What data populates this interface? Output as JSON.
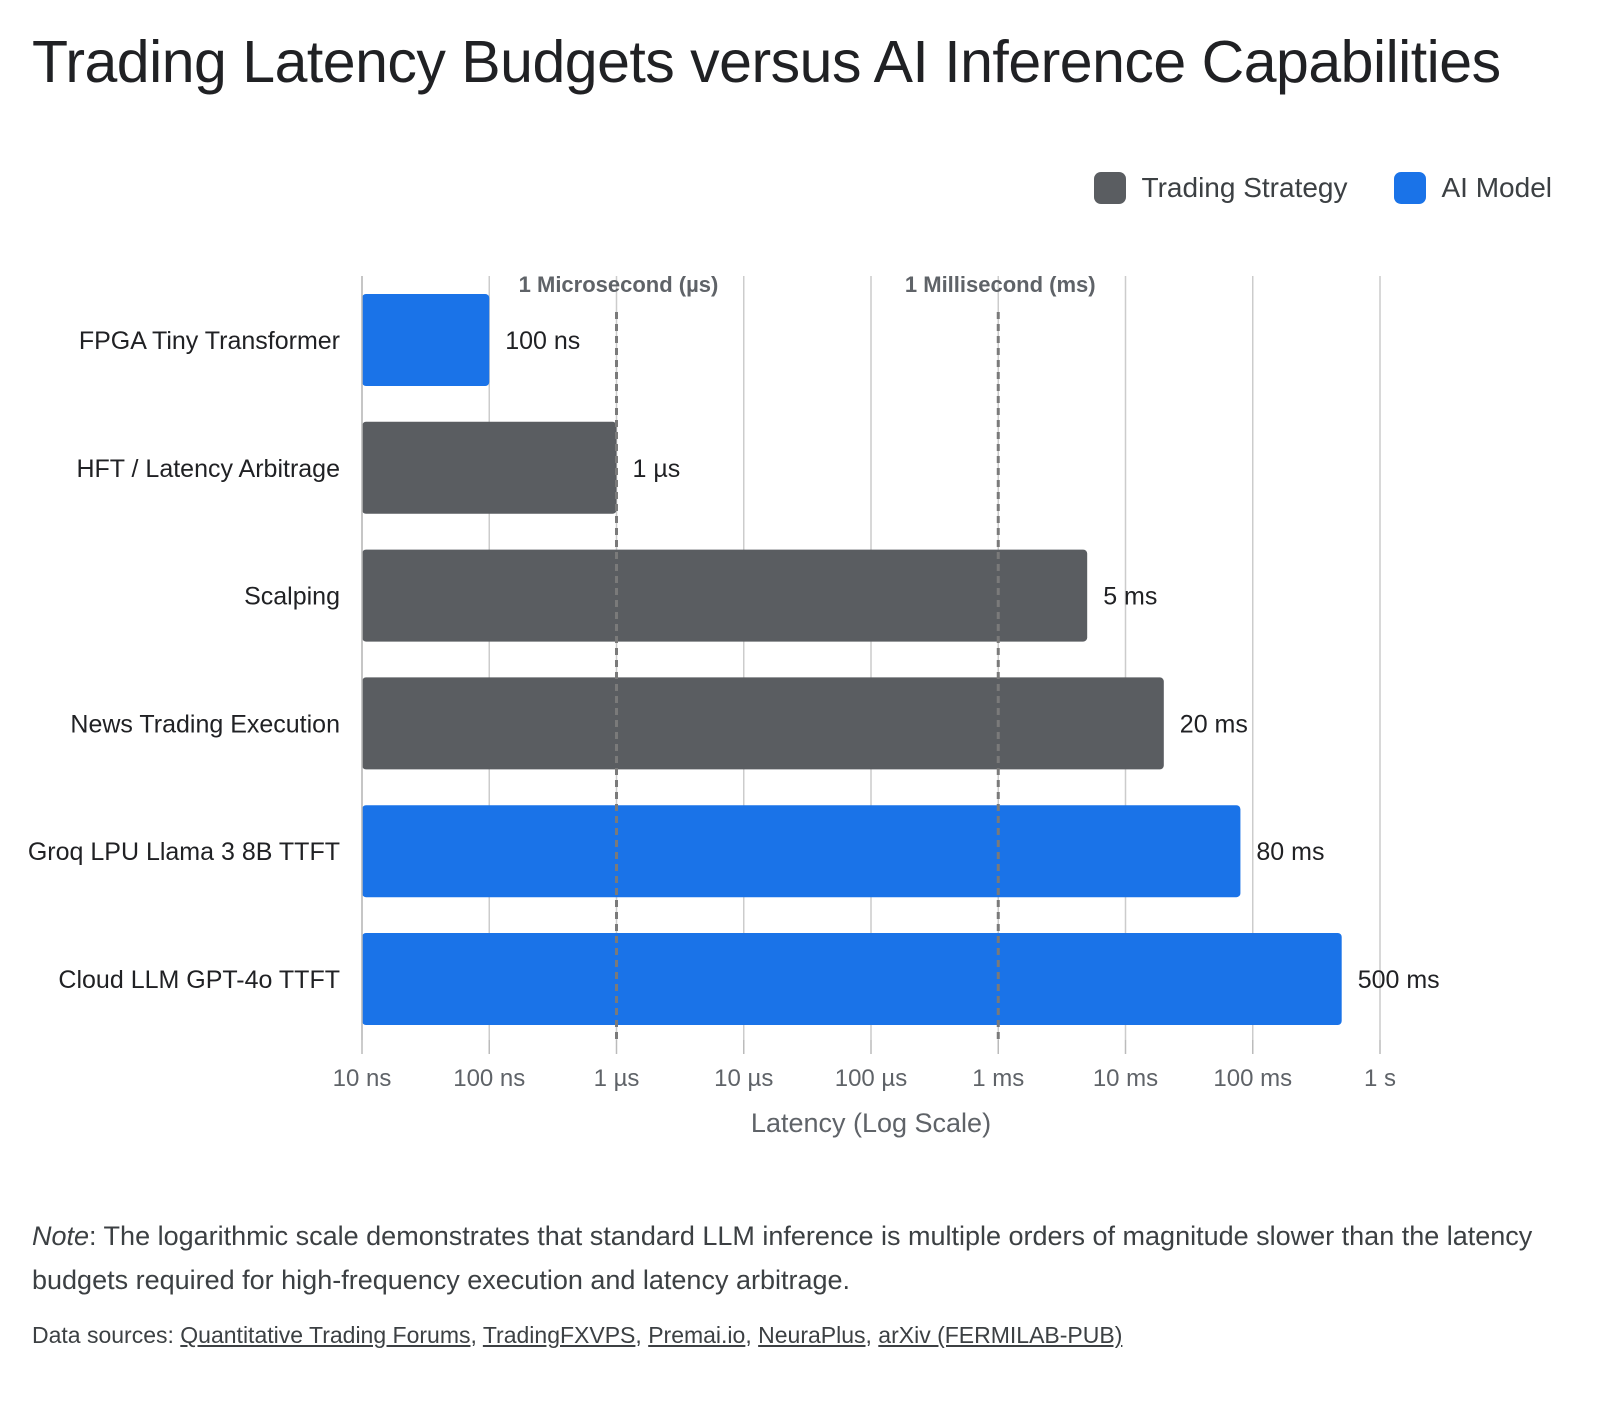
{
  "title": "Trading Latency Budgets versus AI Inference Capabilities",
  "legend": [
    {
      "label": "Trading Strategy",
      "color": "#5a5d61"
    },
    {
      "label": "AI Model",
      "color": "#1a73e8"
    }
  ],
  "chart_data": {
    "type": "bar",
    "orientation": "horizontal",
    "scale": "log",
    "xlabel": "Latency (Log Scale)",
    "xlim_seconds": [
      1e-08,
      1
    ],
    "ticks": [
      {
        "value": 1e-08,
        "label": "10 ns"
      },
      {
        "value": 1e-07,
        "label": "100 ns"
      },
      {
        "value": 1e-06,
        "label": "1 µs"
      },
      {
        "value": 1e-05,
        "label": "10 µs"
      },
      {
        "value": 0.0001,
        "label": "100 µs"
      },
      {
        "value": 0.001,
        "label": "1 ms"
      },
      {
        "value": 0.01,
        "label": "10 ms"
      },
      {
        "value": 0.1,
        "label": "100 ms"
      },
      {
        "value": 1,
        "label": "1 s"
      }
    ],
    "reference_lines": [
      {
        "value": 1e-06,
        "label": "1 Microsecond (µs)"
      },
      {
        "value": 0.001,
        "label": "1 Millisecond (ms)"
      }
    ],
    "bars": [
      {
        "category": "FPGA Tiny Transformer",
        "value": 1e-07,
        "label": "100 ns",
        "group": "AI Model"
      },
      {
        "category": "HFT / Latency Arbitrage",
        "value": 1e-06,
        "label": "1 µs",
        "group": "Trading Strategy"
      },
      {
        "category": "Scalping",
        "value": 0.005,
        "label": "5 ms",
        "group": "Trading Strategy"
      },
      {
        "category": "News Trading Execution",
        "value": 0.02,
        "label": "20 ms",
        "group": "Trading Strategy"
      },
      {
        "category": "Groq LPU Llama 3 8B TTFT",
        "value": 0.08,
        "label": "80 ms",
        "group": "AI Model"
      },
      {
        "category": "Cloud LLM GPT-4o TTFT",
        "value": 0.5,
        "label": "500 ms",
        "group": "AI Model"
      }
    ],
    "grid": true,
    "legend_position": "top-right"
  },
  "note": {
    "prefix": "Note",
    "text": ": The logarithmic scale demonstrates that standard LLM inference is multiple orders of magnitude slower than the latency budgets required for high-frequency execution and latency arbitrage."
  },
  "sources": {
    "prefix": "Data sources: ",
    "links": [
      "Quantitative Trading Forums",
      "TradingFXVPS",
      "Premai.io",
      "NeuraPlus",
      "arXiv (FERMILAB-PUB)"
    ]
  }
}
